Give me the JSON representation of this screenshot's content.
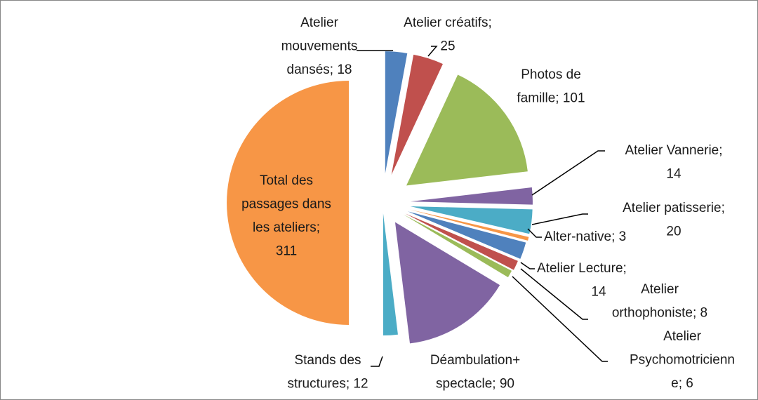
{
  "chart_data": {
    "type": "pie",
    "labels": [
      [
        "Atelier",
        "mouvements",
        "dansés; 18"
      ],
      [
        "Atelier créatifs;",
        "25"
      ],
      [
        "Photos de",
        "famille; 101"
      ],
      [
        "Atelier Vannerie;",
        "14"
      ],
      [
        "Atelier patisserie;",
        "20"
      ],
      [
        "Alter-native; 3"
      ],
      [
        "Atelier Lecture;",
        "14"
      ],
      [
        "Atelier",
        "orthophoniste; 8"
      ],
      [
        "Atelier",
        "Psychomotricienn",
        "e; 6"
      ],
      [
        "Déambulation+",
        "spectacle; 90"
      ],
      [
        "Stands des",
        "structures; 12"
      ],
      [
        "Total des",
        "passages dans",
        "les ateliers;",
        "311"
      ]
    ],
    "values": [
      18,
      25,
      101,
      14,
      20,
      3,
      14,
      8,
      6,
      90,
      12,
      311
    ],
    "colors": [
      "#4F81BD",
      "#C0504D",
      "#9BBB59",
      "#8064A2",
      "#4BACC6",
      "#F79646",
      "#4F81BD",
      "#C0504D",
      "#9BBB59",
      "#8064A2",
      "#4BACC6",
      "#F79646"
    ]
  }
}
